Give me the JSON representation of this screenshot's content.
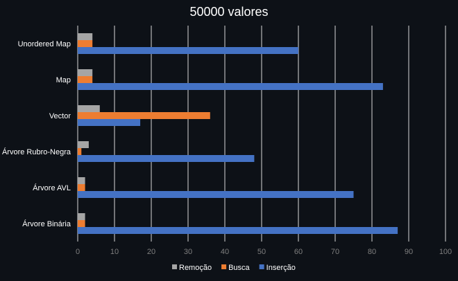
{
  "chart_data": {
    "type": "bar",
    "orientation": "horizontal",
    "title": "50000 valores",
    "xlabel": "",
    "ylabel": "",
    "categories": [
      "Unordered Map",
      "Map",
      "Vector",
      "Árvore Rubro-Negra",
      "Árvore AVL",
      "Árvore Binária"
    ],
    "series": [
      {
        "name": "Remoção",
        "color": "#a5a5a5",
        "values": [
          4,
          4,
          6,
          3,
          2,
          2
        ]
      },
      {
        "name": "Busca",
        "color": "#ed7d31",
        "values": [
          4,
          4,
          36,
          1,
          2,
          2
        ]
      },
      {
        "name": "Inserção",
        "color": "#4472c4",
        "values": [
          60,
          83,
          17,
          48,
          75,
          87
        ]
      }
    ],
    "xlim": [
      0,
      100
    ],
    "x_ticks": [
      "0",
      "10",
      "20",
      "30",
      "40",
      "50",
      "60",
      "70",
      "80",
      "90",
      "100"
    ],
    "grid": true,
    "legend_position": "bottom"
  }
}
